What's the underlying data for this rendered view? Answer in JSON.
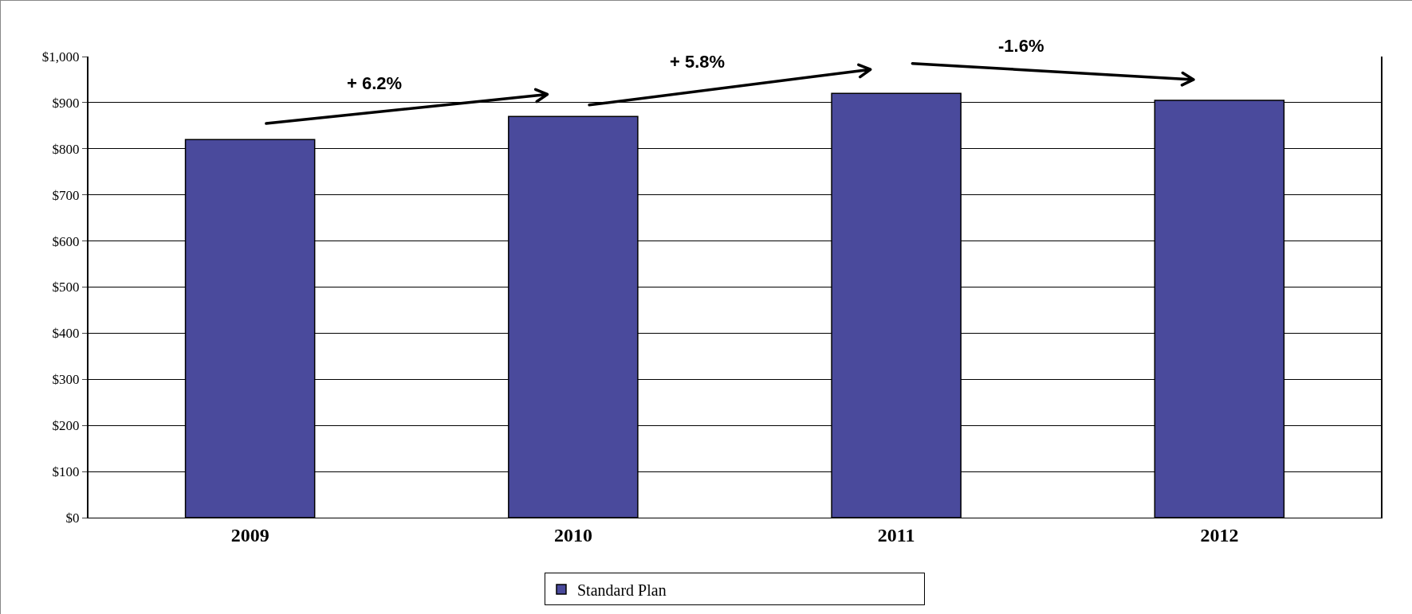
{
  "chart_data": {
    "type": "bar",
    "categories": [
      "2009",
      "2010",
      "2011",
      "2012"
    ],
    "series": [
      {
        "name": "Standard Plan",
        "color": "#4a4a9c",
        "values": [
          820,
          870,
          920,
          905
        ]
      }
    ],
    "ylim": [
      0,
      1000
    ],
    "yticks": [
      {
        "value": 0,
        "label": "$0"
      },
      {
        "value": 100,
        "label": "$100"
      },
      {
        "value": 200,
        "label": "$200"
      },
      {
        "value": 300,
        "label": "$300"
      },
      {
        "value": 400,
        "label": "$400"
      },
      {
        "value": 500,
        "label": "$500"
      },
      {
        "value": 600,
        "label": "$600"
      },
      {
        "value": 700,
        "label": "$700"
      },
      {
        "value": 800,
        "label": "$800"
      },
      {
        "value": 900,
        "label": "$900"
      },
      {
        "value": 1000,
        "label": "$1,000"
      }
    ],
    "annotations": [
      "+ 6.2%",
      "+ 5.8%",
      "-1.6%"
    ],
    "grid": "y",
    "legend": "bottom"
  }
}
